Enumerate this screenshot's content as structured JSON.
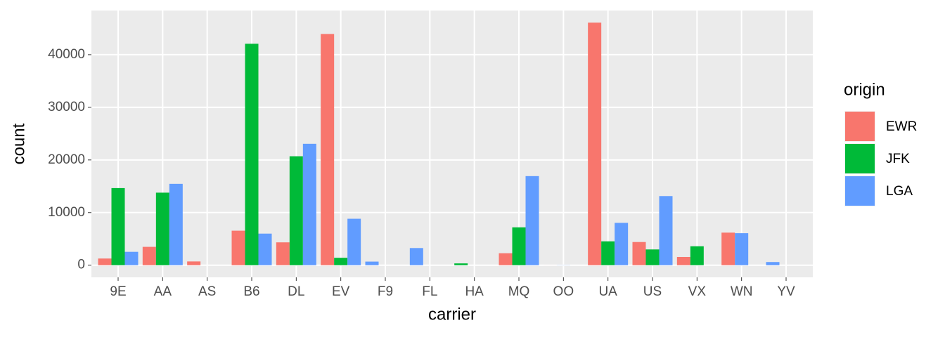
{
  "chart_data": {
    "type": "bar",
    "x_label": "carrier",
    "y_label": "count",
    "legend_title": "origin",
    "categories": [
      "9E",
      "AA",
      "AS",
      "B6",
      "DL",
      "EV",
      "F9",
      "FL",
      "HA",
      "MQ",
      "OO",
      "UA",
      "US",
      "VX",
      "WN",
      "YV"
    ],
    "series": [
      {
        "name": "EWR",
        "color": "#F8766D",
        "values": [
          1268,
          3487,
          714,
          6557,
          4342,
          43939,
          null,
          null,
          null,
          2276,
          6,
          46087,
          4405,
          1566,
          6188,
          null
        ]
      },
      {
        "name": "JFK",
        "color": "#00BA38",
        "values": [
          14651,
          13783,
          null,
          42076,
          20701,
          1408,
          null,
          null,
          342,
          7193,
          null,
          4534,
          2995,
          3596,
          null,
          null
        ]
      },
      {
        "name": "LGA",
        "color": "#619CFF",
        "values": [
          2541,
          15459,
          null,
          6002,
          23067,
          8826,
          685,
          3260,
          null,
          16928,
          26,
          8044,
          13136,
          null,
          6087,
          601
        ]
      }
    ],
    "ylim": [
      -2304,
      48391
    ],
    "yticks": [
      0,
      10000,
      20000,
      30000,
      40000
    ],
    "grid": true,
    "legend": "right"
  }
}
